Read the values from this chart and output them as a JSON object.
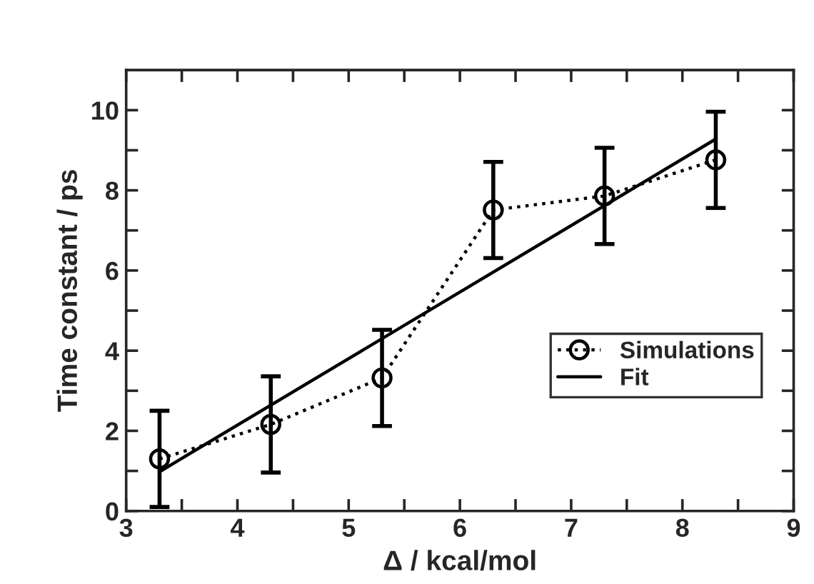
{
  "chart_data": {
    "type": "line",
    "xlabel": "Δ / kcal/mol",
    "ylabel": "Time constant / ps",
    "xlim": [
      3,
      9
    ],
    "ylim": [
      0,
      11
    ],
    "xticks": [
      3,
      {
        "value": 3.5,
        "label": null
      },
      4,
      {
        "value": 4.5,
        "label": null
      },
      5,
      {
        "value": 5.5,
        "label": null
      },
      6,
      {
        "value": 6.5,
        "label": null
      },
      7,
      {
        "value": 7.5,
        "label": null
      },
      8,
      {
        "value": 8.5,
        "label": null
      },
      9
    ],
    "yticks": [
      0,
      {
        "value": 1,
        "label": null
      },
      2,
      {
        "value": 3,
        "label": null
      },
      4,
      {
        "value": 5,
        "label": null
      },
      6,
      {
        "value": 7,
        "label": null
      },
      8,
      {
        "value": 9,
        "label": null
      },
      10
    ],
    "grid": false,
    "legend": "right",
    "series": [
      {
        "name": "Simulations",
        "color": "#000000",
        "marker": "circle",
        "line_style": "dotted",
        "x": [
          3.3,
          4.3,
          5.3,
          6.3,
          7.3,
          8.3
        ],
        "values": [
          1.3,
          2.16,
          3.32,
          7.51,
          7.86,
          8.76
        ],
        "errors": [
          1.2,
          1.2,
          1.2,
          1.2,
          1.2,
          1.2
        ]
      },
      {
        "name": "Fit",
        "color": "#000000",
        "marker": "none",
        "line_style": "solid",
        "x": [
          3.3,
          8.3
        ],
        "values": [
          0.98,
          9.28
        ]
      }
    ]
  }
}
